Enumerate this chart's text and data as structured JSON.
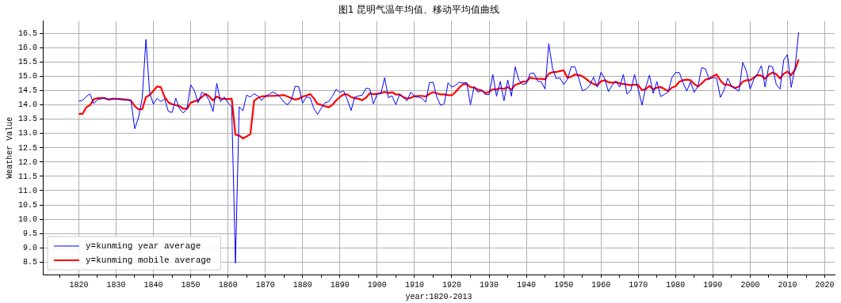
{
  "chart_data": {
    "type": "line",
    "title": "图1 昆明气温年均值、移动平均值曲线",
    "xlabel": "year:1820-2013",
    "ylabel": "Weather Value",
    "x": [
      1820,
      1821,
      1822,
      1823,
      1824,
      1825,
      1826,
      1827,
      1828,
      1829,
      1830,
      1831,
      1832,
      1833,
      1834,
      1835,
      1836,
      1837,
      1838,
      1839,
      1840,
      1841,
      1842,
      1843,
      1844,
      1845,
      1846,
      1847,
      1848,
      1849,
      1850,
      1851,
      1852,
      1853,
      1854,
      1855,
      1856,
      1857,
      1858,
      1859,
      1860,
      1861,
      1862,
      1863,
      1864,
      1865,
      1866,
      1867,
      1868,
      1869,
      1870,
      1871,
      1872,
      1873,
      1874,
      1875,
      1876,
      1877,
      1878,
      1879,
      1880,
      1881,
      1882,
      1883,
      1884,
      1885,
      1886,
      1887,
      1888,
      1889,
      1890,
      1891,
      1892,
      1893,
      1894,
      1895,
      1896,
      1897,
      1898,
      1899,
      1900,
      1901,
      1902,
      1903,
      1904,
      1905,
      1906,
      1907,
      1908,
      1909,
      1910,
      1911,
      1912,
      1913,
      1914,
      1915,
      1916,
      1917,
      1918,
      1919,
      1920,
      1921,
      1922,
      1923,
      1924,
      1925,
      1926,
      1927,
      1928,
      1929,
      1930,
      1931,
      1932,
      1933,
      1934,
      1935,
      1936,
      1937,
      1938,
      1939,
      1940,
      1941,
      1942,
      1943,
      1944,
      1945,
      1946,
      1947,
      1948,
      1949,
      1950,
      1951,
      1952,
      1953,
      1954,
      1955,
      1956,
      1957,
      1958,
      1959,
      1960,
      1961,
      1962,
      1963,
      1964,
      1965,
      1966,
      1967,
      1968,
      1969,
      1970,
      1971,
      1972,
      1973,
      1974,
      1975,
      1976,
      1977,
      1978,
      1979,
      1980,
      1981,
      1982,
      1983,
      1984,
      1985,
      1986,
      1987,
      1988,
      1989,
      1990,
      1991,
      1992,
      1993,
      1994,
      1995,
      1996,
      1997,
      1998,
      1999,
      2000,
      2001,
      2002,
      2003,
      2004,
      2005,
      2006,
      2007,
      2008,
      2009,
      2010,
      2011,
      2012,
      2013
    ],
    "series": [
      {
        "name": "y=kunming year average",
        "color": "#0000ff",
        "values": [
          14.14,
          14.16,
          14.3,
          14.39,
          14.05,
          14.19,
          14.22,
          14.24,
          14.2,
          14.22,
          14.2,
          14.2,
          14.18,
          14.17,
          14.15,
          13.17,
          13.55,
          14.24,
          16.3,
          14.42,
          14.03,
          14.24,
          14.12,
          14.22,
          13.78,
          13.74,
          14.24,
          13.87,
          13.72,
          13.87,
          14.71,
          14.5,
          14.08,
          14.45,
          14.37,
          14.15,
          13.77,
          14.76,
          14.12,
          14.28,
          14.08,
          13.94,
          8.46,
          13.94,
          13.8,
          14.35,
          14.28,
          14.4,
          14.32,
          14.16,
          14.31,
          14.37,
          14.46,
          14.39,
          14.28,
          14.1,
          14.01,
          14.19,
          14.66,
          14.64,
          14.07,
          14.28,
          14.26,
          13.89,
          13.67,
          13.89,
          14.08,
          14.12,
          14.31,
          14.55,
          14.44,
          14.5,
          14.19,
          13.81,
          14.28,
          14.32,
          14.35,
          14.59,
          14.57,
          14.04,
          14.39,
          14.4,
          14.96,
          14.26,
          14.32,
          14.01,
          14.37,
          14.26,
          14.15,
          14.45,
          14.3,
          14.28,
          14.24,
          14.1,
          14.78,
          14.8,
          14.28,
          13.99,
          14.05,
          14.78,
          14.63,
          14.69,
          14.8,
          14.77,
          14.79,
          14.01,
          14.65,
          14.45,
          14.52,
          14.37,
          14.37,
          15.07,
          14.31,
          14.83,
          14.15,
          14.88,
          14.31,
          15.34,
          14.87,
          14.72,
          14.76,
          15.1,
          15.13,
          14.84,
          14.81,
          14.56,
          16.15,
          15.29,
          14.93,
          14.95,
          14.72,
          14.9,
          15.34,
          15.34,
          14.95,
          14.5,
          14.56,
          14.69,
          14.98,
          14.63,
          15.15,
          14.93,
          14.47,
          14.7,
          14.83,
          14.63,
          15.07,
          14.38,
          14.52,
          15.07,
          14.55,
          14.0,
          14.63,
          15.05,
          14.41,
          14.82,
          14.3,
          14.37,
          14.45,
          14.96,
          15.14,
          15.14,
          14.78,
          14.49,
          14.81,
          14.45,
          14.66,
          15.31,
          15.27,
          14.91,
          14.96,
          14.95,
          14.27,
          14.52,
          14.94,
          14.66,
          14.57,
          14.49,
          15.49,
          15.19,
          14.56,
          14.91,
          15.11,
          15.38,
          14.63,
          15.38,
          15.34,
          14.72,
          14.56,
          15.58,
          15.77,
          14.62,
          15.28,
          16.55
        ]
      },
      {
        "name": "y=kunming mobile average",
        "color": "#ff0000",
        "values": [
          13.69,
          13.69,
          13.92,
          14.0,
          14.2,
          14.24,
          14.25,
          14.24,
          14.19,
          14.22,
          14.22,
          14.21,
          14.2,
          14.19,
          14.16,
          13.96,
          13.85,
          13.85,
          14.28,
          14.35,
          14.5,
          14.65,
          14.63,
          14.28,
          14.1,
          14.03,
          14.0,
          13.96,
          13.87,
          13.87,
          14.08,
          14.13,
          14.17,
          14.28,
          14.39,
          14.3,
          14.16,
          14.3,
          14.23,
          14.21,
          14.21,
          14.22,
          12.96,
          12.93,
          12.83,
          12.9,
          12.98,
          14.15,
          14.25,
          14.3,
          14.31,
          14.32,
          14.32,
          14.33,
          14.34,
          14.35,
          14.3,
          14.24,
          14.19,
          14.22,
          14.3,
          14.33,
          14.39,
          14.24,
          14.04,
          14.01,
          13.96,
          13.92,
          14.01,
          14.16,
          14.28,
          14.37,
          14.37,
          14.28,
          14.24,
          14.22,
          14.17,
          14.26,
          14.41,
          14.38,
          14.39,
          14.42,
          14.46,
          14.42,
          14.45,
          14.37,
          14.37,
          14.28,
          14.23,
          14.25,
          14.31,
          14.32,
          14.32,
          14.3,
          14.39,
          14.45,
          14.41,
          14.37,
          14.37,
          14.35,
          14.34,
          14.46,
          14.61,
          14.73,
          14.73,
          14.63,
          14.61,
          14.54,
          14.51,
          14.42,
          14.46,
          14.55,
          14.55,
          14.59,
          14.57,
          14.63,
          14.54,
          14.71,
          14.75,
          14.82,
          14.82,
          14.96,
          14.93,
          14.92,
          14.92,
          14.9,
          15.1,
          15.15,
          15.16,
          15.19,
          15.22,
          14.96,
          14.99,
          15.07,
          15.05,
          15.01,
          14.92,
          14.81,
          14.74,
          14.69,
          14.83,
          14.87,
          14.8,
          14.78,
          14.81,
          14.76,
          14.74,
          14.72,
          14.7,
          14.72,
          14.7,
          14.52,
          14.56,
          14.67,
          14.55,
          14.61,
          14.63,
          14.56,
          14.49,
          14.61,
          14.66,
          14.82,
          14.87,
          14.89,
          14.87,
          14.74,
          14.65,
          14.76,
          14.89,
          14.92,
          15.01,
          15.07,
          14.87,
          14.72,
          14.72,
          14.66,
          14.6,
          14.65,
          14.82,
          14.87,
          14.87,
          14.96,
          15.05,
          15.03,
          14.92,
          15.07,
          15.14,
          15.08,
          14.93,
          15.1,
          15.17,
          15.05,
          15.24,
          15.6
        ]
      }
    ],
    "xlim": [
      1810.35,
      2022.65
    ],
    "xticks": [
      {
        "value": 1815,
        "label": null
      },
      1820,
      {
        "value": 1825,
        "label": null
      },
      1830,
      {
        "value": 1835,
        "label": null
      },
      1840,
      {
        "value": 1845,
        "label": null
      },
      1850,
      {
        "value": 1855,
        "label": null
      },
      1860,
      {
        "value": 1865,
        "label": null
      },
      1870,
      {
        "value": 1875,
        "label": null
      },
      1880,
      {
        "value": 1885,
        "label": null
      },
      1890,
      {
        "value": 1895,
        "label": null
      },
      1900,
      {
        "value": 1905,
        "label": null
      },
      1910,
      {
        "value": 1915,
        "label": null
      },
      1920,
      {
        "value": 1925,
        "label": null
      },
      1930,
      {
        "value": 1935,
        "label": null
      },
      1940,
      {
        "value": 1945,
        "label": null
      },
      1950,
      {
        "value": 1955,
        "label": null
      },
      1960,
      {
        "value": 1965,
        "label": null
      },
      1970,
      {
        "value": 1975,
        "label": null
      },
      1980,
      {
        "value": 1985,
        "label": null
      },
      1990,
      {
        "value": 1995,
        "label": null
      },
      2000,
      {
        "value": 2005,
        "label": null
      },
      2010,
      {
        "value": 2015,
        "label": null
      },
      2020
    ],
    "ylim": [
      8.06,
      16.95
    ],
    "yticks": [
      8.5,
      {
        "value": 9,
        "label": "9.0"
      },
      9.5,
      {
        "value": 10,
        "label": "10.0"
      },
      10.5,
      {
        "value": 11,
        "label": "11.0"
      },
      11.5,
      {
        "value": 12,
        "label": "12.0"
      },
      12.5,
      {
        "value": 13,
        "label": "13.0"
      },
      13.5,
      {
        "value": 14,
        "label": "14.0"
      },
      14.5,
      {
        "value": 15,
        "label": "15.0"
      },
      15.5,
      {
        "value": 16,
        "label": "16.0"
      },
      16.5
    ],
    "grid": true,
    "legend": "bottom left"
  }
}
